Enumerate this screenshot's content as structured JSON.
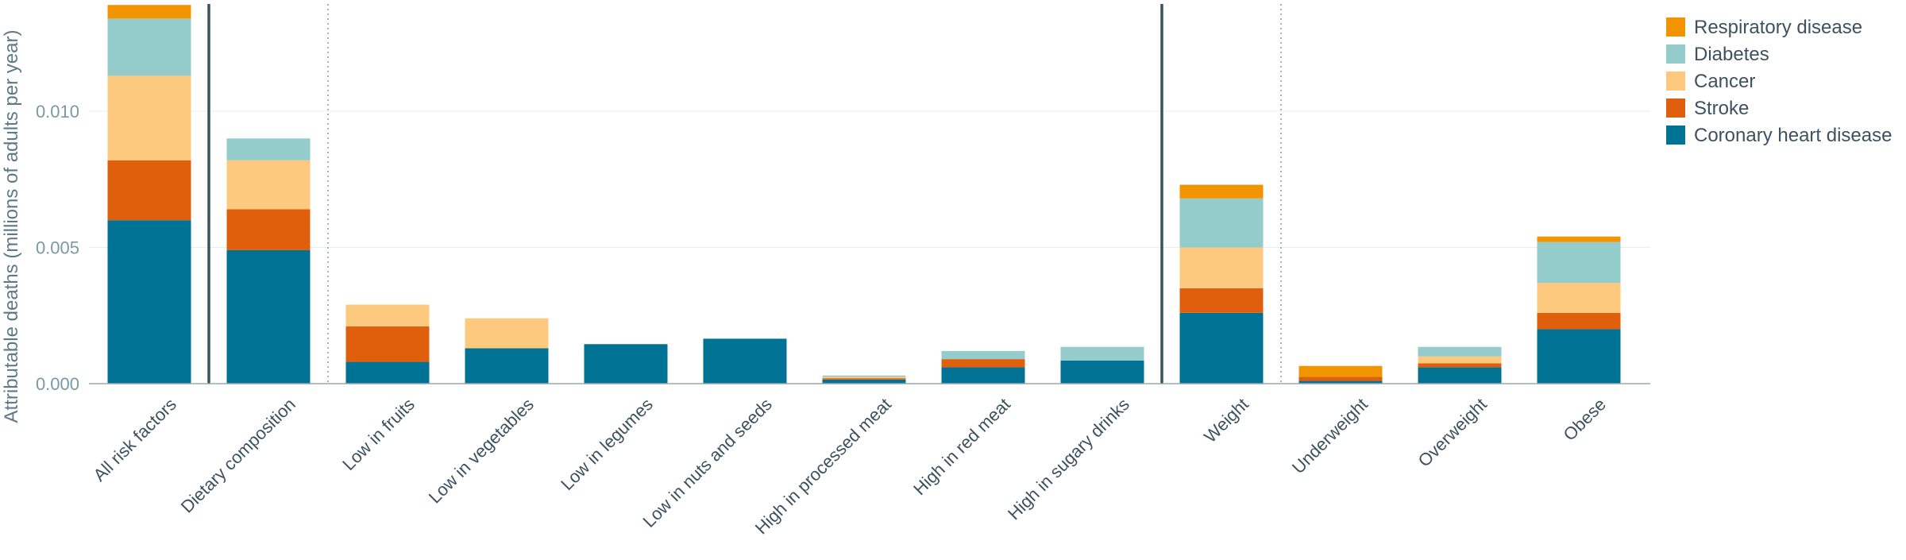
{
  "chart_data": {
    "type": "bar",
    "stacked": true,
    "ylabel": "Attributable deaths (millions of adults per year)",
    "ylim": [
      0,
      0.014
    ],
    "yticks": [
      0.0,
      0.005,
      0.01
    ],
    "ytick_labels": [
      "0.000",
      "0.005",
      "0.010"
    ],
    "grid": true,
    "legend_position": "top-right",
    "categories": [
      "All risk factors",
      "Dietary composition",
      "Low in fruits",
      "Low in vegetables",
      "Low in legumes",
      "Low in nuts and seeds",
      "High in processed meat",
      "High in red meat",
      "High in sugary drinks",
      "Weight",
      "Underweight",
      "Overweight",
      "Obese"
    ],
    "series": [
      {
        "name": "Coronary heart disease",
        "color": "#007294",
        "values": [
          0.006,
          0.0049,
          0.0008,
          0.0013,
          0.00145,
          0.00165,
          0.00015,
          0.0006,
          0.00085,
          0.0026,
          0.0001,
          0.0006,
          0.002
        ]
      },
      {
        "name": "Stroke",
        "color": "#df5f0d",
        "values": [
          0.0022,
          0.0015,
          0.0013,
          0.0,
          0.0,
          0.0,
          5e-05,
          0.0003,
          0.0,
          0.0009,
          0.00015,
          0.00015,
          0.0006
        ]
      },
      {
        "name": "Cancer",
        "color": "#fdc97e",
        "values": [
          0.0031,
          0.0018,
          0.0008,
          0.0011,
          0.0,
          0.0,
          5e-05,
          0.0,
          0.0,
          0.0015,
          0.0,
          0.00025,
          0.0011
        ]
      },
      {
        "name": "Diabetes",
        "color": "#94cbcb",
        "values": [
          0.0021,
          0.0008,
          0.0,
          0.0,
          0.0,
          0.0,
          5e-05,
          0.0003,
          0.0005,
          0.0018,
          0.0,
          0.00035,
          0.0015
        ]
      },
      {
        "name": "Respiratory disease",
        "color": "#f29300",
        "values": [
          0.0005,
          0.0,
          0.0,
          0.0,
          0.0,
          0.0,
          0.0,
          0.0,
          0.0,
          0.0005,
          0.0004,
          0.0,
          0.0002
        ]
      }
    ],
    "separators": [
      {
        "after_index": 0,
        "style": "solid"
      },
      {
        "after_index": 1,
        "style": "dotted"
      },
      {
        "after_index": 8,
        "style": "solid"
      },
      {
        "after_index": 9,
        "style": "dotted"
      }
    ],
    "colors": {
      "axis_text": "#3d5260",
      "tick_text": "#7a9aa3",
      "gridline": "#e8eef0",
      "baseline": "#9aa8ad",
      "solid_separator": "#3d5260",
      "dotted_separator": "#aab4b8"
    }
  }
}
